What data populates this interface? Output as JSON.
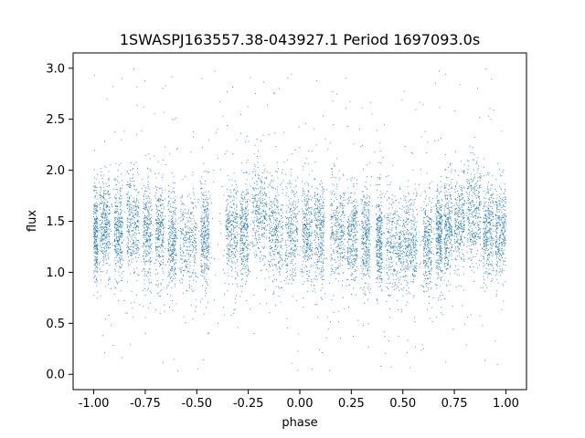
{
  "chart_data": {
    "type": "scatter",
    "title": "1SWASPJ163557.38-043927.1 Period 1697093.0s",
    "xlabel": "phase",
    "ylabel": "flux",
    "xlim": [
      -1.1,
      1.1
    ],
    "ylim": [
      -0.15,
      3.15
    ],
    "xticks": [
      "-1.00",
      "-0.75",
      "-0.50",
      "-0.25",
      "0.00",
      "0.25",
      "0.50",
      "0.75",
      "1.00"
    ],
    "yticks": [
      "0.0",
      "0.5",
      "1.0",
      "1.5",
      "2.0",
      "2.5",
      "3.0"
    ],
    "grid": false,
    "marker_color": "#1f77b4",
    "n_points": 9000,
    "seed": 20240531,
    "bands": [
      {
        "x": [
          -1.0,
          -0.98
        ],
        "center": 1.35
      },
      {
        "x": [
          -0.97,
          -0.92
        ],
        "center": 1.45
      },
      {
        "x": [
          -0.9,
          -0.86
        ],
        "center": 1.4
      },
      {
        "x": [
          -0.84,
          -0.78
        ],
        "center": 1.5
      },
      {
        "x": [
          -0.76,
          -0.72
        ],
        "center": 1.4
      },
      {
        "x": [
          -0.7,
          -0.66
        ],
        "center": 1.4
      },
      {
        "x": [
          -0.64,
          -0.6
        ],
        "center": 1.3
      },
      {
        "x": [
          -0.58,
          -0.5
        ],
        "center": 1.3
      },
      {
        "x": [
          -0.48,
          -0.44
        ],
        "center": 1.35
      },
      {
        "x": [
          -0.36,
          -0.3
        ],
        "center": 1.4
      },
      {
        "x": [
          -0.29,
          -0.25
        ],
        "center": 1.4
      },
      {
        "x": [
          -0.23,
          -0.16
        ],
        "center": 1.6
      },
      {
        "x": [
          -0.15,
          -0.08
        ],
        "center": 1.4
      },
      {
        "x": [
          -0.07,
          -0.01
        ],
        "center": 1.4
      },
      {
        "x": [
          0.01,
          0.06
        ],
        "center": 1.4
      },
      {
        "x": [
          0.07,
          0.12
        ],
        "center": 1.4
      },
      {
        "x": [
          0.15,
          0.22
        ],
        "center": 1.4
      },
      {
        "x": [
          0.23,
          0.28
        ],
        "center": 1.35
      },
      {
        "x": [
          0.3,
          0.34
        ],
        "center": 1.35
      },
      {
        "x": [
          0.37,
          0.4
        ],
        "center": 1.3
      },
      {
        "x": [
          0.42,
          0.5
        ],
        "center": 1.25
      },
      {
        "x": [
          0.5,
          0.57
        ],
        "center": 1.3
      },
      {
        "x": [
          0.6,
          0.64
        ],
        "center": 1.3
      },
      {
        "x": [
          0.66,
          0.69
        ],
        "center": 1.35
      },
      {
        "x": [
          0.7,
          0.74
        ],
        "center": 1.4
      },
      {
        "x": [
          0.75,
          0.8
        ],
        "center": 1.5
      },
      {
        "x": [
          0.81,
          0.88
        ],
        "center": 1.6
      },
      {
        "x": [
          0.89,
          0.94
        ],
        "center": 1.4
      },
      {
        "x": [
          0.95,
          1.0
        ],
        "center": 1.4
      }
    ]
  }
}
